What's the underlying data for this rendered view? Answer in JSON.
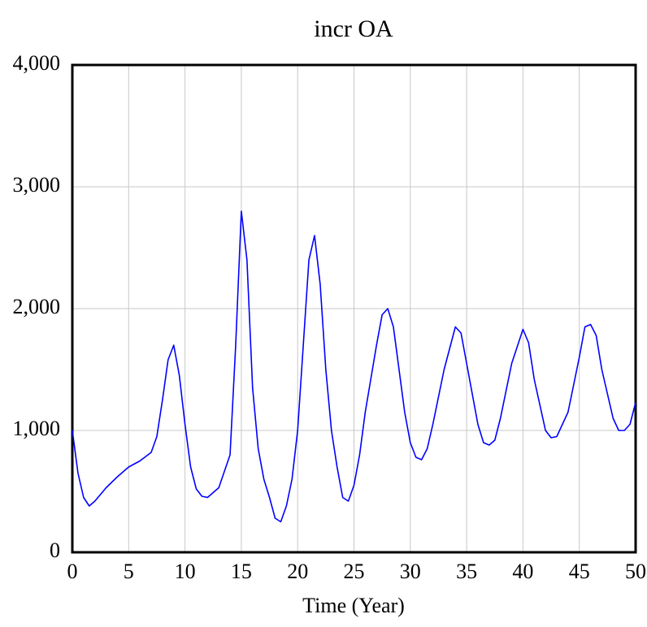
{
  "chart_data": {
    "type": "line",
    "title": "incr OA",
    "x_label": "Time (Year)",
    "x": [
      0,
      0.5,
      1,
      1.5,
      2,
      3,
      4,
      5,
      6,
      7,
      7.5,
      8,
      8.5,
      9,
      9.5,
      10,
      10.5,
      11,
      11.5,
      12,
      13,
      14,
      14.5,
      15,
      15.5,
      16,
      16.5,
      17,
      17.5,
      18,
      18.5,
      19,
      19.5,
      20,
      20.5,
      21,
      21.5,
      22,
      22.5,
      23,
      23.5,
      24,
      24.5,
      25,
      25.5,
      26,
      27,
      27.5,
      28,
      28.5,
      29,
      29.5,
      30,
      30.5,
      31,
      31.5,
      32,
      33,
      34,
      34.5,
      35,
      36,
      36.5,
      37,
      37.5,
      38,
      39,
      40,
      40.5,
      41,
      42,
      42.5,
      43,
      44,
      45,
      45.5,
      46,
      46.5,
      47,
      48,
      48.5,
      49,
      49.5,
      50
    ],
    "series": [
      {
        "name": "incr OA",
        "color": "#0000ff",
        "values": [
          1000,
          650,
          450,
          380,
          420,
          530,
          620,
          700,
          750,
          820,
          950,
          1250,
          1580,
          1700,
          1450,
          1050,
          700,
          520,
          460,
          450,
          530,
          800,
          1700,
          2800,
          2400,
          1350,
          850,
          600,
          450,
          280,
          250,
          380,
          600,
          1000,
          1700,
          2400,
          2600,
          2200,
          1500,
          1000,
          700,
          450,
          420,
          550,
          800,
          1150,
          1700,
          1950,
          2000,
          1850,
          1500,
          1150,
          900,
          780,
          760,
          850,
          1050,
          1500,
          1850,
          1800,
          1550,
          1050,
          900,
          880,
          920,
          1100,
          1550,
          1830,
          1720,
          1420,
          1000,
          940,
          950,
          1150,
          1600,
          1850,
          1870,
          1780,
          1500,
          1100,
          1000,
          1000,
          1050,
          1230
        ]
      }
    ],
    "xlim": [
      0,
      50
    ],
    "ylim": [
      0,
      4000
    ],
    "xticks": [
      0,
      5,
      10,
      15,
      20,
      25,
      30,
      35,
      40,
      45,
      50
    ],
    "yticks": [
      0,
      {
        "value": 1000,
        "label": "1,000"
      },
      {
        "value": 2000,
        "label": "2,000"
      },
      {
        "value": 3000,
        "label": "3,000"
      },
      {
        "value": 4000,
        "label": "4,000"
      }
    ],
    "grid": true
  }
}
